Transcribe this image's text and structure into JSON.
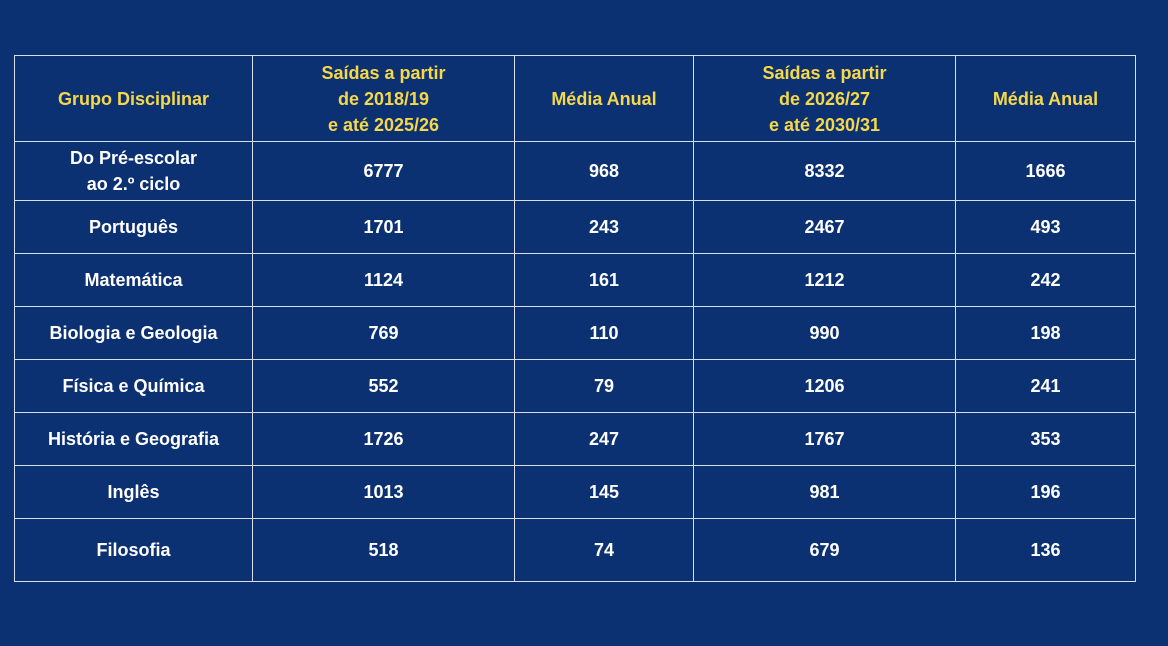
{
  "table": {
    "headers": [
      [
        "Grupo Disciplinar"
      ],
      [
        "Saídas a partir",
        "de 2018/19",
        "e até 2025/26"
      ],
      [
        "Média Anual"
      ],
      [
        "Saídas a partir",
        "de 2026/27",
        "e até 2030/31"
      ],
      [
        "Média Anual"
      ]
    ],
    "rows": [
      [
        [
          "Do Pré-escolar",
          "ao 2.º ciclo"
        ],
        "6777",
        "968",
        "8332",
        "1666"
      ],
      [
        [
          "Português"
        ],
        "1701",
        "243",
        "2467",
        "493"
      ],
      [
        [
          "Matemática"
        ],
        "1124",
        "161",
        "1212",
        "242"
      ],
      [
        [
          "Biologia e Geologia"
        ],
        "769",
        "110",
        "990",
        "198"
      ],
      [
        [
          "Física e Química"
        ],
        "552",
        "79",
        "1206",
        "241"
      ],
      [
        [
          "História e Geografia"
        ],
        "1726",
        "247",
        "1767",
        "353"
      ],
      [
        [
          "Inglês"
        ],
        "1013",
        "145",
        "981",
        "196"
      ],
      [
        [
          "Filosofia"
        ],
        "518",
        "74",
        "679",
        "136"
      ]
    ]
  },
  "colors": {
    "background": "#0c3172",
    "header_text": "#f5d84a",
    "cell_text": "#ffffff",
    "grid": "#d7deea"
  }
}
